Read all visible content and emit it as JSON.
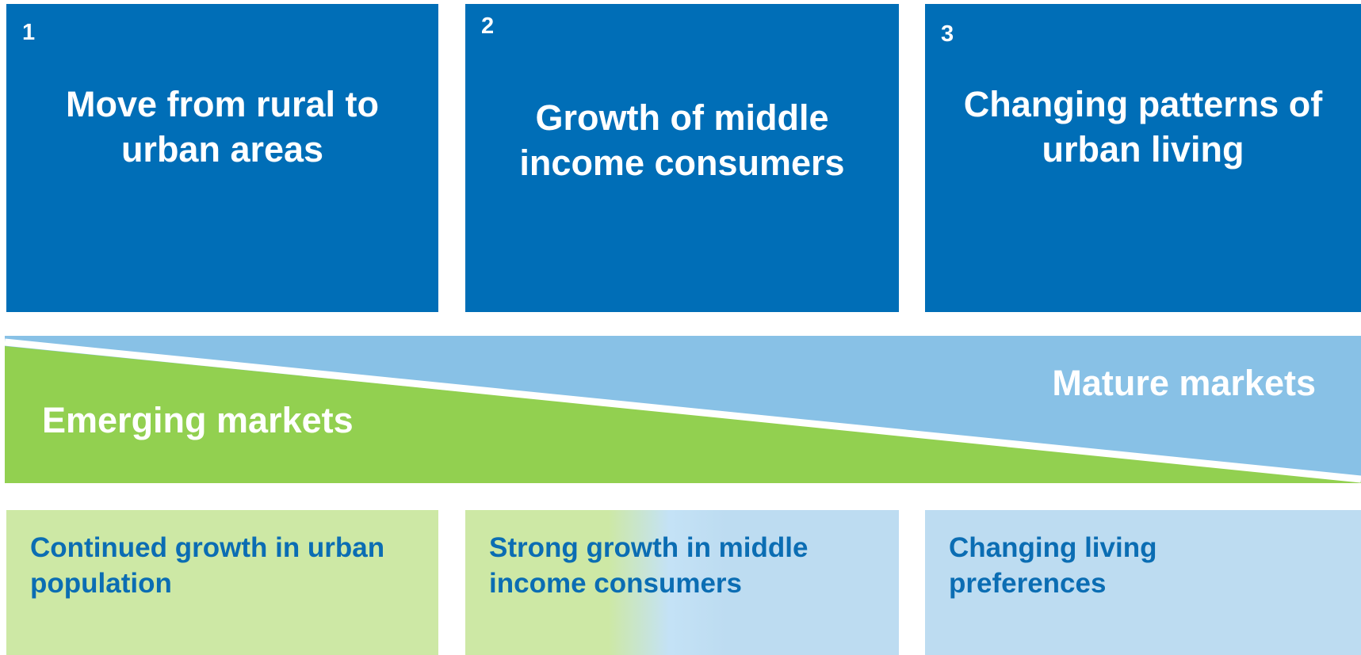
{
  "drivers": [
    {
      "number": "1",
      "title": "Move from rural to urban areas"
    },
    {
      "number": "2",
      "title": "Growth of middle income consumers"
    },
    {
      "number": "3",
      "title": "Changing patterns of urban living"
    }
  ],
  "markets": {
    "emerging": "Emerging markets",
    "mature": "Mature markets"
  },
  "outcomes": [
    "Continued growth in urban population",
    "Strong growth in middle income consumers",
    "Changing living preferences"
  ]
}
